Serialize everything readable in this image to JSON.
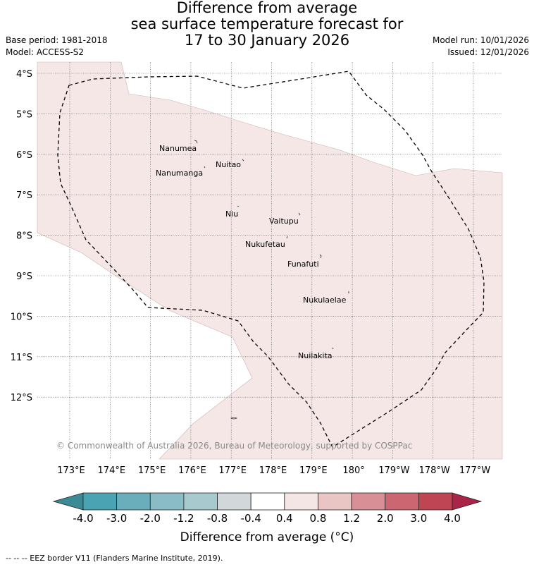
{
  "header": {
    "title_lines": [
      "Difference from average",
      "sea surface temperature forecast for",
      "17 to 30 January 2026"
    ],
    "base_period": "Base period: 1981-2018",
    "model": "Model: ACCESS-S2",
    "model_run": "Model run: 10/01/2026",
    "issued": "Issued: 12/01/2026"
  },
  "map": {
    "lat_labels": [
      "4°S",
      "5°S",
      "6°S",
      "7°S",
      "8°S",
      "9°S",
      "10°S",
      "11°S",
      "12°S"
    ],
    "lon_labels": [
      "173°E",
      "174°E",
      "175°E",
      "176°E",
      "177°E",
      "178°E",
      "179°E",
      "180°",
      "179°W",
      "178°W",
      "177°W"
    ],
    "islands": [
      {
        "name": "Nanumea"
      },
      {
        "name": "Nuitao"
      },
      {
        "name": "Nanumanga"
      },
      {
        "name": "Niu"
      },
      {
        "name": "Vaitupu"
      },
      {
        "name": "Nukufetau"
      },
      {
        "name": "Funafuti"
      },
      {
        "name": "Nukulaelae"
      },
      {
        "name": "Nuilakita"
      }
    ],
    "copyright": "© Commonwealth of Australia 2026, Bureau of Meteorology, supported by COSPPac",
    "anomaly_fill_color": "#f4e7e6",
    "eez_color": "#000000"
  },
  "colorbar": {
    "title": "Difference from average (°C)",
    "ticks": [
      "-4.0",
      "-3.0",
      "-2.0",
      "-1.2",
      "-0.8",
      "-0.4",
      "0.4",
      "0.8",
      "1.2",
      "2.0",
      "3.0",
      "4.0"
    ],
    "colors": [
      "#3b8a96",
      "#4aa3b3",
      "#6aaebb",
      "#8abcc5",
      "#a8c9cd",
      "#d2d8da",
      "#ffffff",
      "#f4e6e5",
      "#e9c5c3",
      "#d88f96",
      "#ca6770",
      "#c04553",
      "#a92447"
    ]
  },
  "legend": {
    "text": "--  --  -- EEZ border V11 (Flanders Marine Institute, 2019)."
  }
}
